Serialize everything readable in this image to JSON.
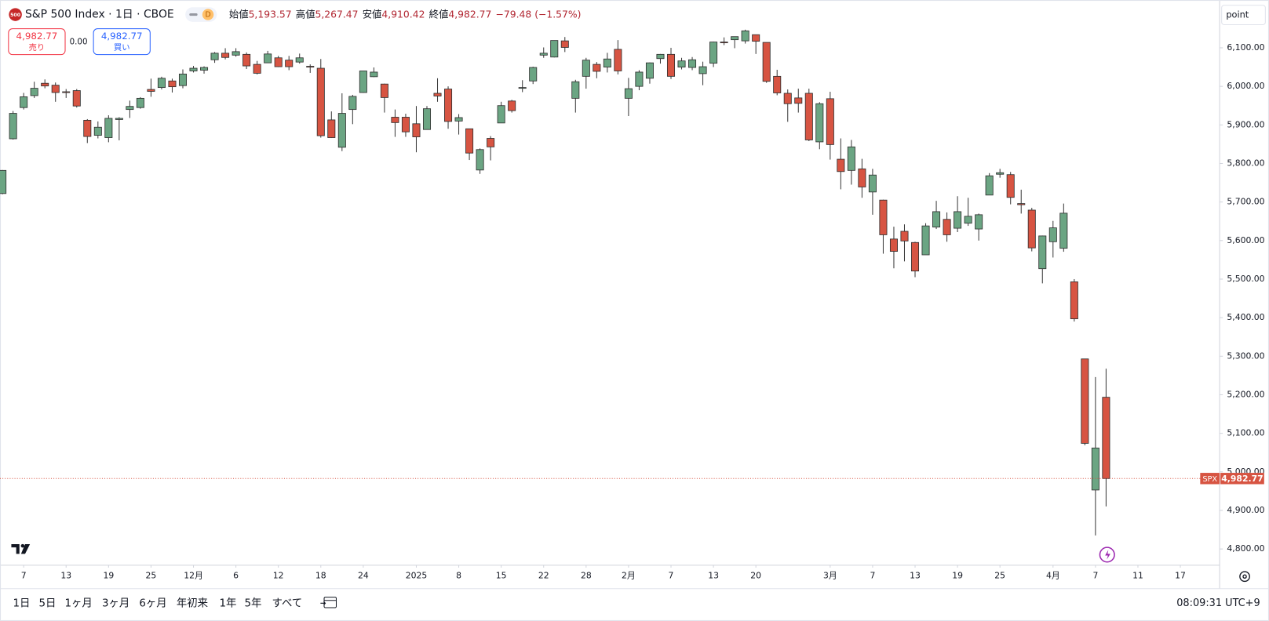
{
  "header": {
    "icon": "500",
    "title": "S&P 500 Index · 1日 · CBOE",
    "badge": "D",
    "open_label": "始値",
    "open": "5,193.57",
    "high_label": "高値",
    "high": "5,267.47",
    "low_label": "安値",
    "low": "4,910.42",
    "close_label": "終値",
    "close": "4,982.77",
    "change": "−79.48 (−1.57%)"
  },
  "trade": {
    "sell_price": "4,982.77",
    "sell": "売り",
    "spread": "0.00",
    "buy_price": "4,982.77",
    "buy": "買い"
  },
  "scale_mode": "point",
  "price_marker": {
    "symbol": "SPX",
    "price": "4,982.77"
  },
  "toolbar": {
    "periods": [
      "1日",
      "5日",
      "1ヶ月",
      "3ヶ月",
      "6ヶ月",
      "年初来",
      "1年",
      "5年",
      "すべて"
    ],
    "time": "08:09:31 UTC+9"
  },
  "chart_data": {
    "type": "candlestick",
    "up_color": "#6ba583",
    "down_color": "#d75442",
    "grid": false,
    "open": [
      5722,
      5864,
      5945,
      5976,
      6008,
      6003,
      5986,
      5989,
      5912,
      5873,
      5867,
      5914,
      5940,
      5945,
      5992,
      5997,
      6014,
      6002,
      6040,
      6042,
      6069,
      6086,
      6081,
      6083,
      6057,
      6061,
      6074,
      6068,
      6063,
      6052,
      6047,
      5913,
      5842,
      5940,
      5984,
      6025,
      6006,
      5920,
      5920,
      5903,
      5888,
      5982,
      5993,
      5910,
      5890,
      5783,
      5865,
      5905,
      5962,
      5996,
      6014,
      6081,
      6076,
      6118,
      5969,
      6026,
      6057,
      6050,
      6096,
      5969,
      6000,
      6021,
      6072,
      6083,
      6050,
      6049,
      6033,
      6060,
      6115,
      6121,
      6118,
      6134,
      6114,
      6026,
      5982,
      5970,
      5982,
      5856,
      5968,
      5811,
      5782,
      5786,
      5726,
      5705,
      5604,
      5624,
      5595,
      5563,
      5635,
      5655,
      5632,
      5645,
      5630,
      5718,
      5772,
      5771,
      5696,
      5679,
      5527,
      5597,
      5580,
      5493,
      5293,
      4953,
      5193.57
    ],
    "high": [
      5783,
      5936,
      5983,
      6012,
      6018,
      6010,
      5993,
      5993,
      5915,
      5909,
      5925,
      5920,
      5963,
      5972,
      6020,
      6025,
      6020,
      6044,
      6053,
      6052,
      6089,
      6099,
      6099,
      6088,
      6066,
      6092,
      6079,
      6079,
      6085,
      6057,
      6071,
      5935,
      5982,
      5978,
      6040,
      6049,
      6007,
      5940,
      5929,
      5949,
      5949,
      6021,
      6000,
      5928,
      5890,
      5839,
      5871,
      5960,
      5965,
      6016,
      6051,
      6101,
      6119,
      6128,
      6017,
      6074,
      6063,
      6087,
      6120,
      6022,
      6042,
      6062,
      6084,
      6100,
      6074,
      6076,
      6064,
      6116,
      6127,
      6129,
      6147,
      6134,
      6114,
      6043,
      5992,
      5994,
      5994,
      5959,
      5986,
      5865,
      5861,
      5812,
      5786,
      5706,
      5636,
      5642,
      5597,
      5645,
      5703,
      5673,
      5715,
      5711,
      5670,
      5775,
      5786,
      5778,
      5732,
      5685,
      5613,
      5651,
      5696,
      5500,
      5293,
      5246,
      5267.47
    ],
    "low": [
      5720,
      5862,
      5940,
      5970,
      5995,
      5960,
      5970,
      5945,
      5853,
      5865,
      5855,
      5860,
      5918,
      5942,
      5973,
      5992,
      5984,
      5995,
      6036,
      6033,
      6061,
      6070,
      6077,
      6045,
      6031,
      6061,
      6050,
      6042,
      6059,
      6035,
      5867,
      5866,
      5832,
      5902,
      5983,
      6024,
      5932,
      5869,
      5869,
      5829,
      5888,
      5960,
      5890,
      5875,
      5809,
      5773,
      5808,
      5905,
      5932,
      5985,
      6006,
      6074,
      6075,
      6089,
      5932,
      5994,
      6021,
      6036,
      6031,
      5923,
      5990,
      6007,
      6059,
      6019,
      6044,
      6042,
      6003,
      6050,
      6107,
      6099,
      6111,
      6084,
      6009,
      5977,
      5908,
      5932,
      5858,
      5837,
      5810,
      5733,
      5745,
      5711,
      5667,
      5566,
      5528,
      5546,
      5505,
      5563,
      5630,
      5597,
      5622,
      5638,
      5600,
      5718,
      5763,
      5694,
      5670,
      5572,
      5489,
      5556,
      5571,
      5390,
      5069,
      4835,
      4910.42
    ],
    "close": [
      5782,
      5930,
      5973,
      5995,
      6001,
      5984,
      5985,
      5949,
      5870,
      5894,
      5917,
      5917,
      5948,
      5969,
      5987,
      6021,
      5999,
      6032,
      6047,
      6049,
      6086,
      6075,
      6090,
      6053,
      6034,
      6084,
      6051,
      6051,
      6074,
      6050,
      5872,
      5867,
      5930,
      5974,
      6040,
      6037,
      5971,
      5906,
      5882,
      5869,
      5942,
      5975,
      5909,
      5919,
      5827,
      5836,
      5843,
      5950,
      5937,
      5997,
      6049,
      6086,
      6119,
      6101,
      6012,
      6068,
      6039,
      6071,
      6040,
      5994,
      6037,
      6061,
      6083,
      6026,
      6066,
      6069,
      6051,
      6115,
      6114,
      6129,
      6144,
      6117,
      6013,
      5983,
      5955,
      5956,
      5861,
      5955,
      5849,
      5779,
      5843,
      5739,
      5770,
      5615,
      5572,
      5599,
      5521,
      5638,
      5675,
      5615,
      5675,
      5663,
      5667,
      5768,
      5776,
      5712,
      5693,
      5581,
      5612,
      5633,
      5671,
      5397,
      5074,
      5062,
      4982.77
    ],
    "xlim": [
      -0.23,
      114.7
    ],
    "ylim": [
      4760,
      6224
    ],
    "yticks": [
      {
        "value": 4800,
        "label": "4,800.00"
      },
      {
        "value": 4900,
        "label": "4,900.00"
      },
      {
        "value": 5000,
        "label": "5,000.00"
      },
      {
        "value": 5100,
        "label": "5,100.00"
      },
      {
        "value": 5200,
        "label": "5,200.00"
      },
      {
        "value": 5300,
        "label": "5,300.00"
      },
      {
        "value": 5400,
        "label": "5,400.00"
      },
      {
        "value": 5500,
        "label": "5,500.00"
      },
      {
        "value": 5600,
        "label": "5,600.00"
      },
      {
        "value": 5700,
        "label": "5,700.00"
      },
      {
        "value": 5800,
        "label": "5,800.00"
      },
      {
        "value": 5900,
        "label": "5,900.00"
      },
      {
        "value": 6000,
        "label": "6,000.00"
      },
      {
        "value": 6100,
        "label": "6,100.00"
      }
    ],
    "xticks": [
      {
        "value": 2,
        "label": "7"
      },
      {
        "value": 6,
        "label": "13"
      },
      {
        "value": 10,
        "label": "19"
      },
      {
        "value": 14,
        "label": "25"
      },
      {
        "value": 18,
        "label": "12月"
      },
      {
        "value": 22,
        "label": "6"
      },
      {
        "value": 26,
        "label": "12"
      },
      {
        "value": 30,
        "label": "18"
      },
      {
        "value": 34,
        "label": "24"
      },
      {
        "value": 39,
        "label": "2025"
      },
      {
        "value": 43,
        "label": "8"
      },
      {
        "value": 47,
        "label": "15"
      },
      {
        "value": 51,
        "label": "22"
      },
      {
        "value": 55,
        "label": "28"
      },
      {
        "value": 59,
        "label": "2月"
      },
      {
        "value": 63,
        "label": "7"
      },
      {
        "value": 67,
        "label": "13"
      },
      {
        "value": 71,
        "label": "20"
      },
      {
        "value": 78,
        "label": "3月"
      },
      {
        "value": 82,
        "label": "7"
      },
      {
        "value": 86,
        "label": "13"
      },
      {
        "value": 90,
        "label": "19"
      },
      {
        "value": 94,
        "label": "25"
      },
      {
        "value": 99,
        "label": "4月"
      },
      {
        "value": 103,
        "label": "7"
      },
      {
        "value": 107,
        "label": "11"
      },
      {
        "value": 111,
        "label": "17"
      }
    ]
  }
}
